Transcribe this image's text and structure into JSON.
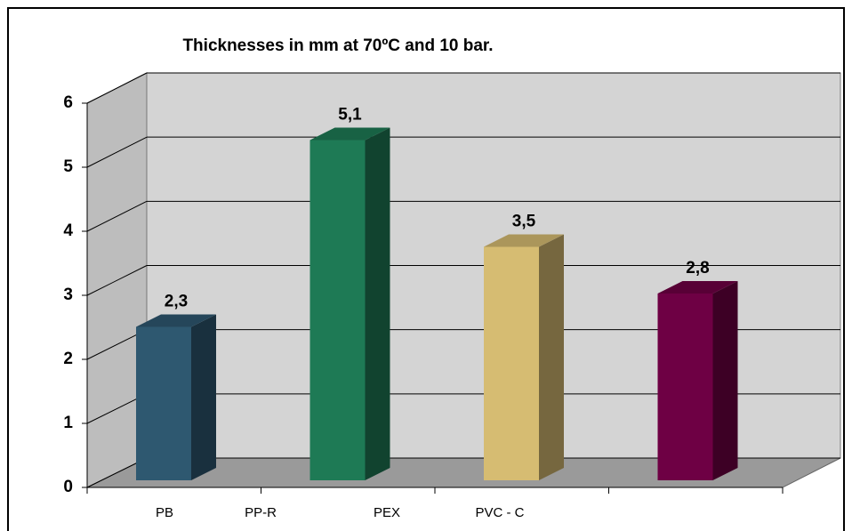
{
  "chart_data": {
    "type": "bar3d",
    "title": "Thicknesses in mm at 70ºC and 10 bar.",
    "categories": [
      "PB",
      "PP-R",
      "PEX",
      "PVC - C"
    ],
    "values": [
      2.3,
      5.1,
      3.5,
      2.8
    ],
    "value_labels": [
      "2,3",
      "5,1",
      "3,5",
      "2,8"
    ],
    "colors": [
      "#2e5870",
      "#1e7a55",
      "#d6bc72",
      "#6e0044"
    ],
    "ylim": [
      0,
      6
    ],
    "yticks": [
      0,
      1,
      2,
      3,
      4,
      5,
      6
    ],
    "grid": true
  }
}
